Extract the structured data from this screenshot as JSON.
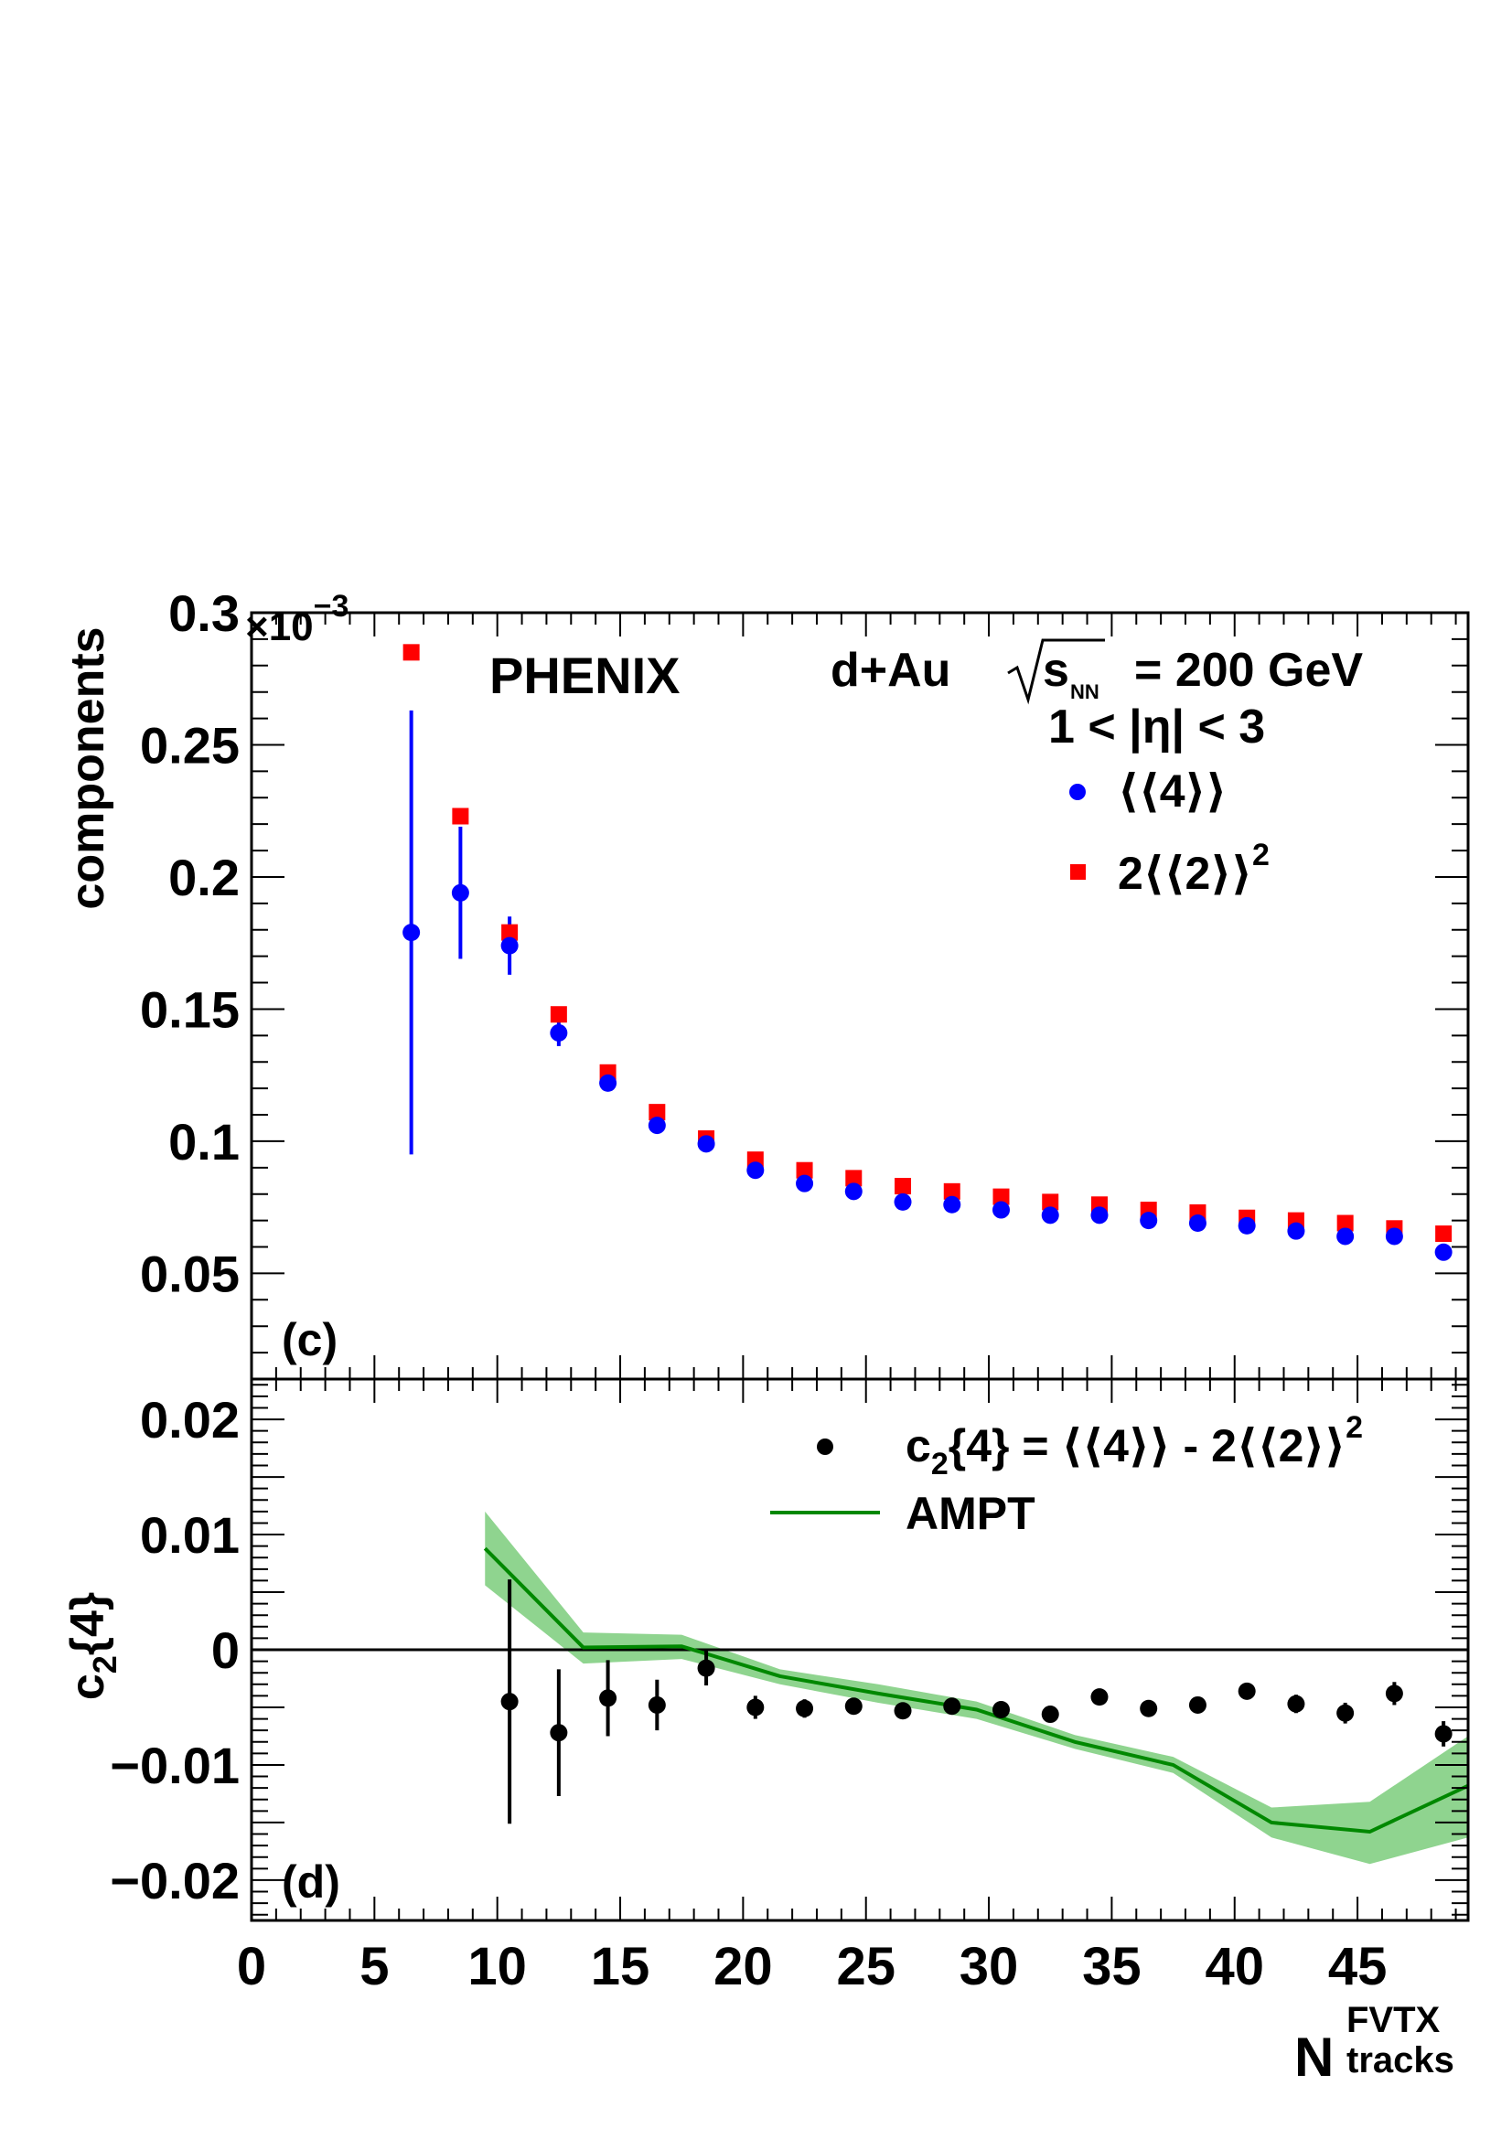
{
  "figure": {
    "x_axis": {
      "label_main": "N",
      "label_sup": "FVTX",
      "label_sub": "tracks",
      "range": [
        0,
        49.5
      ],
      "ticks": [
        0,
        5,
        10,
        15,
        20,
        25,
        30,
        35,
        40,
        45
      ],
      "tick_labels": [
        "0",
        "5",
        "10",
        "15",
        "20",
        "25",
        "30",
        "35",
        "40",
        "45"
      ]
    }
  },
  "chart_data": [
    {
      "type": "scatter",
      "panel": "(c)",
      "experiment": "PHENIX",
      "system_prefix": "d+Au",
      "energy_suffix": "= 200 GeV",
      "energy_symbol": "s",
      "energy_subscript": "NN",
      "eta_cut": "1 < |η| < 3",
      "ylabel": "components",
      "y_multiplier_base": "×10",
      "y_multiplier_exp": "−3",
      "ylim": [
        0.01,
        0.3
      ],
      "yticks": [
        0.05,
        0.1,
        0.15,
        0.2,
        0.25,
        0.3
      ],
      "ytick_labels": [
        "0.05",
        "0.1",
        "0.15",
        "0.2",
        "0.25",
        "0.3"
      ],
      "legend_position": "top-right",
      "series": [
        {
          "name": "⟨⟨4⟩⟩",
          "marker": "circle",
          "color": "#0000ff",
          "x": [
            6.5,
            8.5,
            10.5,
            12.5,
            14.5,
            16.5,
            18.5,
            20.5,
            22.5,
            24.5,
            26.5,
            28.5,
            30.5,
            32.5,
            34.5,
            36.5,
            38.5,
            40.5,
            42.5,
            44.5,
            46.5,
            48.5
          ],
          "y": [
            0.179,
            0.194,
            0.174,
            0.141,
            0.122,
            0.106,
            0.099,
            0.089,
            0.084,
            0.081,
            0.077,
            0.076,
            0.074,
            0.072,
            0.072,
            0.07,
            0.069,
            0.068,
            0.066,
            0.064,
            0.064,
            0.058
          ],
          "yerr": [
            0.084,
            0.025,
            0.011,
            0.005,
            0.003,
            0.002,
            0.002,
            0.0015,
            0.0015,
            0.001,
            0.001,
            0.001,
            0.001,
            0.001,
            0.001,
            0.001,
            0.001,
            0.001,
            0.001,
            0.001,
            0.001,
            0.001
          ]
        },
        {
          "name": "2⟨⟨2⟩⟩",
          "name_exp": "2",
          "marker": "square",
          "color": "#ff0000",
          "x": [
            6.5,
            8.5,
            10.5,
            12.5,
            14.5,
            16.5,
            18.5,
            20.5,
            22.5,
            24.5,
            26.5,
            28.5,
            30.5,
            32.5,
            34.5,
            36.5,
            38.5,
            40.5,
            42.5,
            44.5,
            46.5,
            48.5
          ],
          "y": [
            0.285,
            0.223,
            0.179,
            0.148,
            0.126,
            0.111,
            0.101,
            0.093,
            0.089,
            0.086,
            0.083,
            0.081,
            0.079,
            0.077,
            0.076,
            0.074,
            0.073,
            0.071,
            0.07,
            0.069,
            0.067,
            0.065
          ]
        }
      ]
    },
    {
      "type": "line",
      "panel": "(d)",
      "ylabel_main": "c",
      "ylabel_sub": "2",
      "ylabel_rest": "{4}",
      "ylim": [
        -0.0235,
        0.0235
      ],
      "yticks": [
        -0.02,
        -0.01,
        0,
        0.01,
        0.02
      ],
      "ytick_labels": [
        "−0.02",
        "−0.01",
        "0",
        "0.01",
        "0.02"
      ],
      "reference_line_y": 0,
      "legend_position": "top-right",
      "series": [
        {
          "name": "c",
          "name_sub": "2",
          "name_mid": "{4} = ⟨⟨4⟩⟩ - 2⟨⟨2⟩⟩",
          "name_exp": "2",
          "marker": "circle",
          "color": "#000000",
          "x": [
            10.5,
            12.5,
            14.5,
            16.5,
            18.5,
            20.5,
            22.5,
            24.5,
            26.5,
            28.5,
            30.5,
            32.5,
            34.5,
            36.5,
            38.5,
            40.5,
            42.5,
            44.5,
            46.5,
            48.5
          ],
          "y": [
            -0.0045,
            -0.0072,
            -0.0042,
            -0.0048,
            -0.0016,
            -0.005,
            -0.0051,
            -0.0049,
            -0.0053,
            -0.0049,
            -0.0052,
            -0.0056,
            -0.0041,
            -0.0051,
            -0.0048,
            -0.0036,
            -0.0047,
            -0.0055,
            -0.0038,
            -0.0073
          ],
          "yerr": [
            0.0106,
            0.0055,
            0.0033,
            0.0022,
            0.0015,
            0.001,
            0.0008,
            0.0007,
            0.0006,
            0.0006,
            0.0006,
            0.0006,
            0.0006,
            0.0006,
            0.0007,
            0.0007,
            0.0008,
            0.0009,
            0.001,
            0.0011
          ]
        },
        {
          "name": "AMPT",
          "color": "#008800",
          "band_color": "#8fd48f",
          "x": [
            9.5,
            13.5,
            17.5,
            21.5,
            25.5,
            29.5,
            33.5,
            37.5,
            41.5,
            45.5,
            49.5
          ],
          "y": [
            0.0088,
            0.0002,
            0.0003,
            -0.0023,
            -0.0038,
            -0.0052,
            -0.008,
            -0.01,
            -0.015,
            -0.0158,
            -0.0118
          ],
          "band_low": [
            0.0056,
            -0.0012,
            -0.0008,
            -0.003,
            -0.0046,
            -0.006,
            -0.0086,
            -0.0107,
            -0.0163,
            -0.0186,
            -0.0163
          ],
          "band_high": [
            0.012,
            0.0015,
            0.0013,
            -0.0017,
            -0.003,
            -0.0045,
            -0.0074,
            -0.0093,
            -0.0137,
            -0.0132,
            -0.0075
          ]
        }
      ]
    }
  ]
}
